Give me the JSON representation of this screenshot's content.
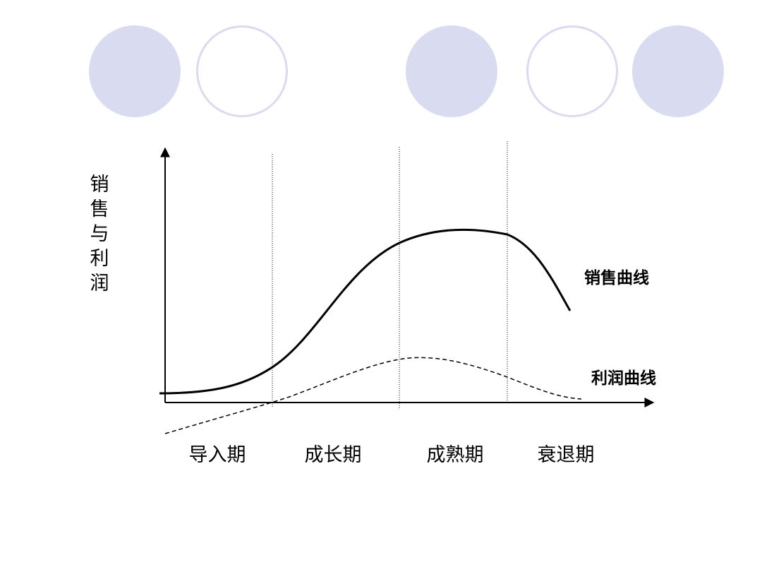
{
  "diagram": {
    "y_axis_label": "销售与利润",
    "sales_curve_label": "销售曲线",
    "profit_curve_label": "利润曲线",
    "stages": [
      {
        "label": "导入期"
      },
      {
        "label": "成长期"
      },
      {
        "label": "成熟期"
      },
      {
        "label": "衰退期"
      }
    ]
  },
  "colors": {
    "decor_circle": "#d9dbf0",
    "line": "#000000"
  }
}
